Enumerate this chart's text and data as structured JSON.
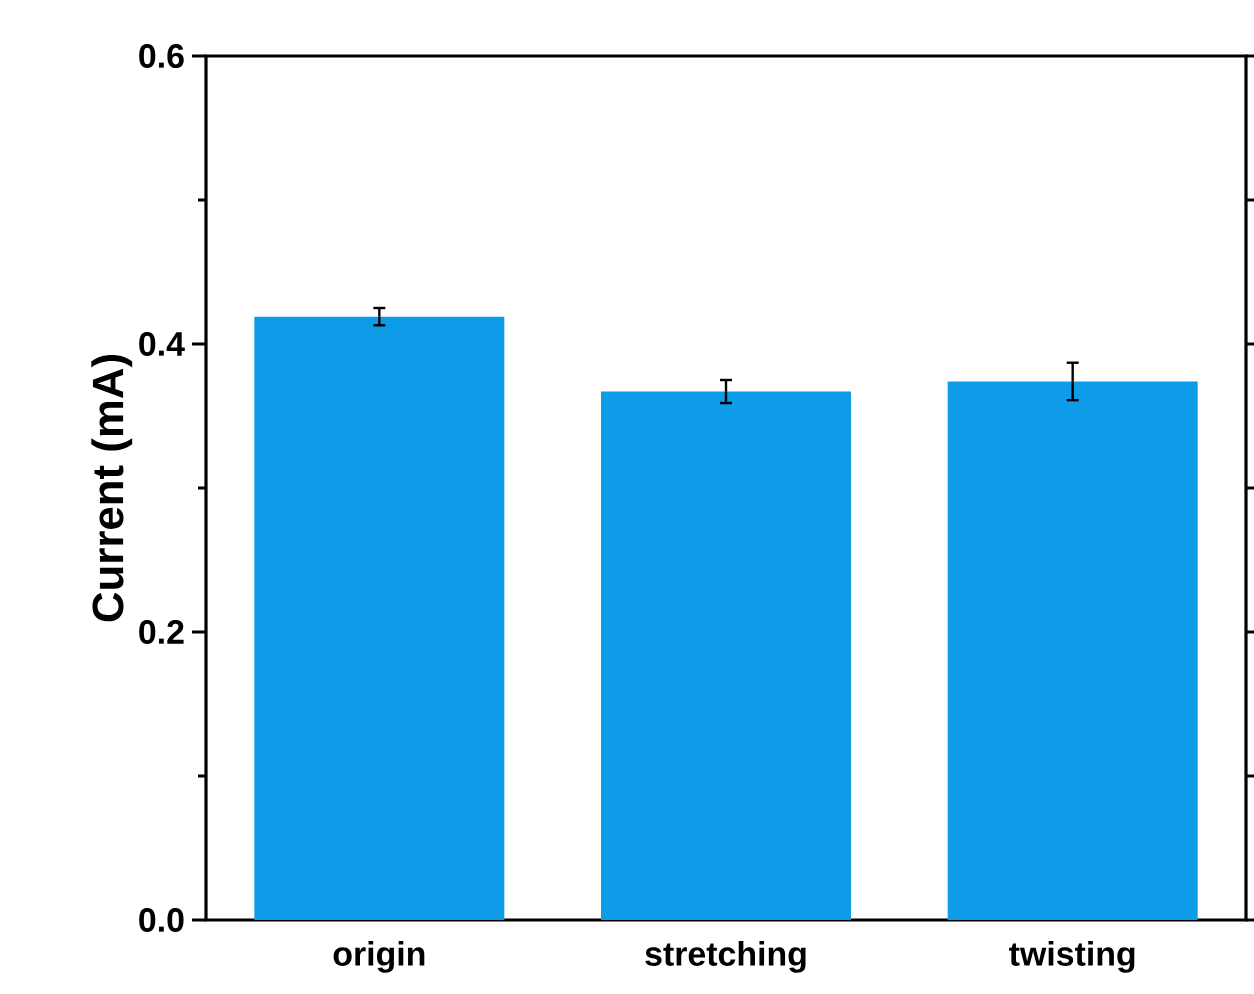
{
  "chart_data": {
    "type": "bar",
    "ylabel": "Current (mA)",
    "categories": [
      "origin",
      "stretching",
      "twisting"
    ],
    "values": [
      0.419,
      0.367,
      0.374
    ],
    "errors": [
      0.006,
      0.008,
      0.013
    ],
    "color": "#0e9be8",
    "ylim": [
      0,
      0.6
    ],
    "yticks": [
      {
        "value": 0,
        "label": "0.0"
      },
      {
        "value": 0.2,
        "label": "0.2"
      },
      {
        "value": 0.4,
        "label": "0.4"
      },
      {
        "value": 0.6,
        "label": "0.6"
      }
    ],
    "grid": false
  }
}
